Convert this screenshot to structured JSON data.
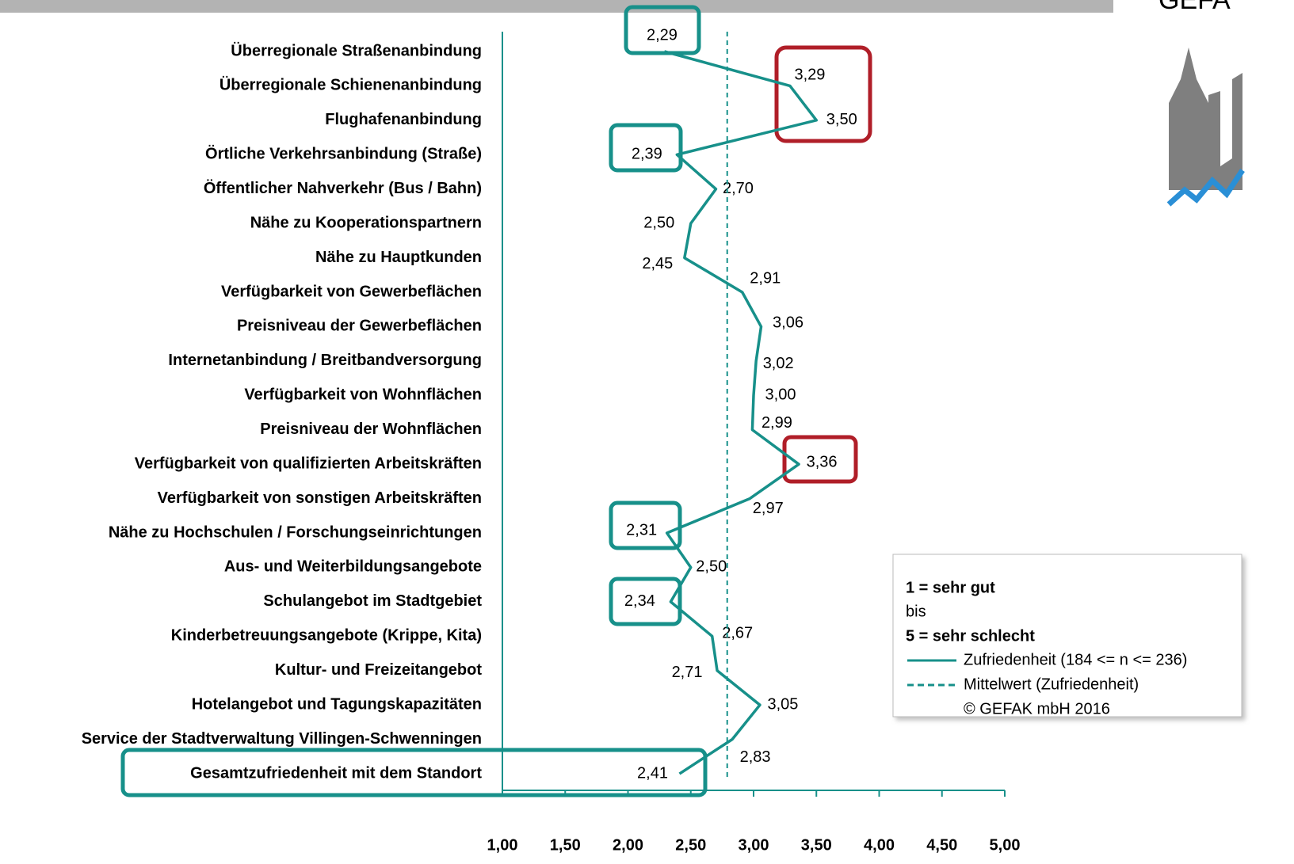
{
  "chart_data": {
    "type": "line",
    "logo_text": "GEFA",
    "categories": [
      "Überregionale Straßenanbindung",
      "Überregionale Schienenanbindung",
      "Flughafenanbindung",
      "Örtliche Verkehrsanbindung (Straße)",
      "Öffentlicher Nahverkehr (Bus / Bahn)",
      "Nähe zu Kooperationspartnern",
      "Nähe zu Hauptkunden",
      "Verfügbarkeit von Gewerbeflächen",
      "Preisniveau der Gewerbeflächen",
      "Internetanbindung / Breitbandversorgung",
      "Verfügbarkeit von Wohnflächen",
      "Preisniveau der Wohnflächen",
      "Verfügbarkeit von qualifizierten Arbeitskräften",
      "Verfügbarkeit von sonstigen Arbeitskräften",
      "Nähe zu Hochschulen / Forschungseinrichtungen",
      "Aus- und Weiterbildungsangebote",
      "Schulangebot im Stadtgebiet",
      "Kinderbetreuungsangebote (Krippe, Kita)",
      "Kultur- und Freizeitangebot",
      "Hotelangebot und Tagungskapazitäten",
      "Service der Stadtverwaltung Villingen-Schwenningen",
      "Gesamtzufriedenheit mit dem Standort"
    ],
    "series": [
      {
        "name": "Zufriedenheit (184 <= n <= 236)",
        "color": "#17908a",
        "values": [
          2.29,
          3.29,
          3.5,
          2.39,
          2.7,
          2.5,
          2.45,
          2.91,
          3.06,
          3.02,
          3.0,
          2.99,
          3.36,
          2.97,
          2.31,
          2.5,
          2.34,
          2.67,
          2.71,
          3.05,
          2.83,
          2.41
        ],
        "value_labels": [
          "2,29",
          "3,29",
          "3,50",
          "2,39",
          "2,70",
          "2,50",
          "2,45",
          "2,91",
          "3,06",
          "3,02",
          "3,00",
          "2,99",
          "3,36",
          "2,97",
          "2,31",
          "2,50",
          "2,34",
          "2,67",
          "2,71",
          "3,05",
          "2,83",
          "2,41"
        ]
      },
      {
        "name": "Mittelwert (Zufriedenheit)",
        "color": "#17908a",
        "dashed": true,
        "value": 2.79
      }
    ],
    "xlim": [
      1,
      5
    ],
    "xticks": [
      {
        "value": 1,
        "label": "1,00"
      },
      {
        "value": 1.5,
        "label": "1,50"
      },
      {
        "value": 2,
        "label": "2,00"
      },
      {
        "value": 2.5,
        "label": "2,50"
      },
      {
        "value": 3,
        "label": "3,00"
      },
      {
        "value": 3.5,
        "label": "3,50"
      },
      {
        "value": 4,
        "label": "4,00"
      },
      {
        "value": 4.5,
        "label": "4,50"
      },
      {
        "value": 5,
        "label": "5,00"
      }
    ],
    "legend": {
      "scale_top": "1 = sehr gut",
      "scale_mid": "bis",
      "scale_bottom": "5 = sehr schlecht",
      "copyright": "© GEFAK mbH 2016"
    }
  }
}
